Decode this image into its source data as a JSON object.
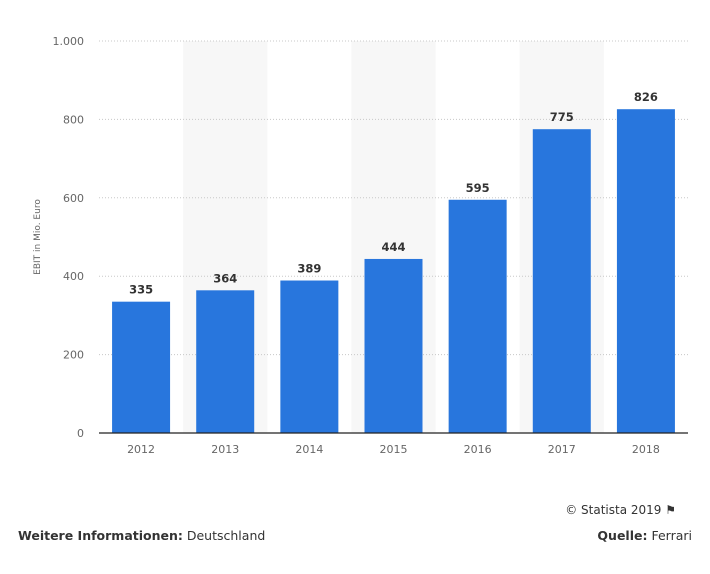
{
  "chart_data": {
    "type": "bar",
    "title": "",
    "xlabel": "",
    "ylabel": "EBIT in Mio. Euro",
    "categories": [
      "2012",
      "2013",
      "2014",
      "2015",
      "2016",
      "2017",
      "2018"
    ],
    "values": [
      335,
      364,
      389,
      444,
      595,
      775,
      826
    ],
    "ylim": [
      0,
      1000
    ],
    "yticks": [
      0,
      200,
      400,
      600,
      800,
      1000
    ],
    "ytick_labels": [
      "0",
      "200",
      "400",
      "600",
      "800",
      "1.000"
    ],
    "grid": true,
    "bar_color": "#2876dd"
  },
  "footer": {
    "copyright": "© Statista 2019",
    "more_info_label": "Weitere Informationen:",
    "more_info_value": "Deutschland",
    "source_label": "Quelle:",
    "source_value": "Ferrari"
  }
}
